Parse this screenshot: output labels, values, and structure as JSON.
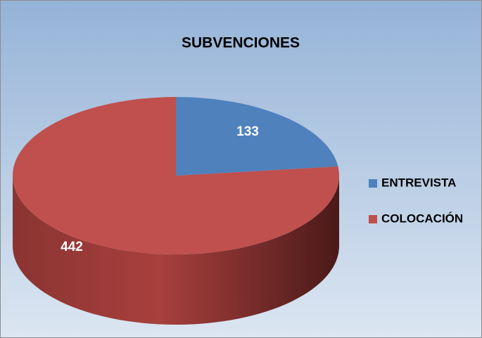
{
  "chart_data": {
    "type": "pie",
    "title": "SUBVENCIONES",
    "categories": [
      "ENTREVISTA",
      "COLOCACIÓN"
    ],
    "values": [
      133,
      442
    ],
    "colors": [
      "#4f81bd",
      "#c0504d"
    ],
    "legend": "right"
  }
}
